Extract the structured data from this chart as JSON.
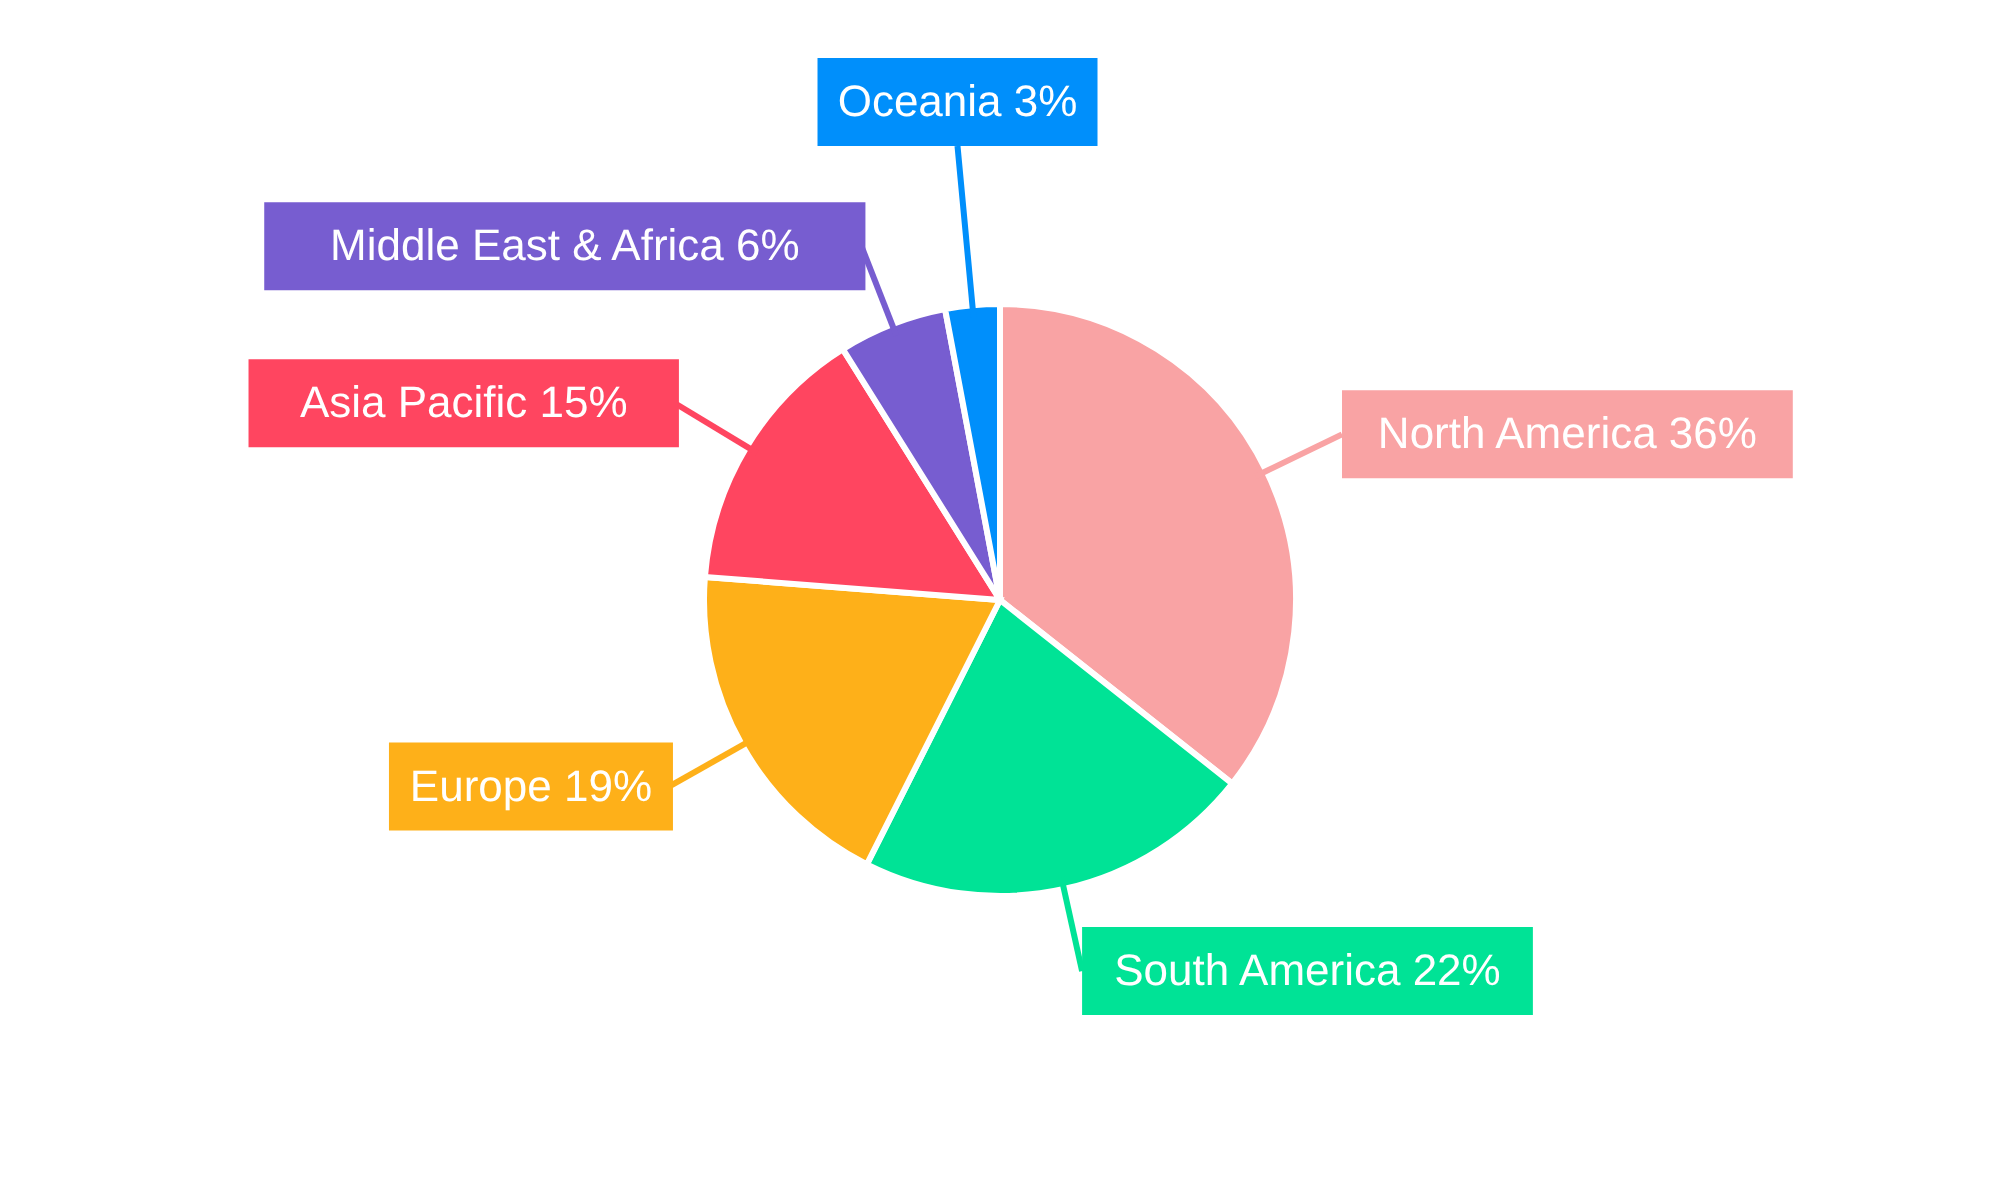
{
  "chart_data": {
    "type": "pie",
    "categories": [
      "North America",
      "South America",
      "Europe",
      "Asia Pacific",
      "Middle East & Africa",
      "Oceania"
    ],
    "values": [
      36,
      22,
      19,
      15,
      6,
      3
    ],
    "value_labels": [
      "36%",
      "22%",
      "19%",
      "15%",
      "6%",
      "3%"
    ],
    "colors": [
      "#f9a3a4",
      "#00e396",
      "#feb019",
      "#ff4560",
      "#775dd0",
      "#008ffb"
    ]
  }
}
